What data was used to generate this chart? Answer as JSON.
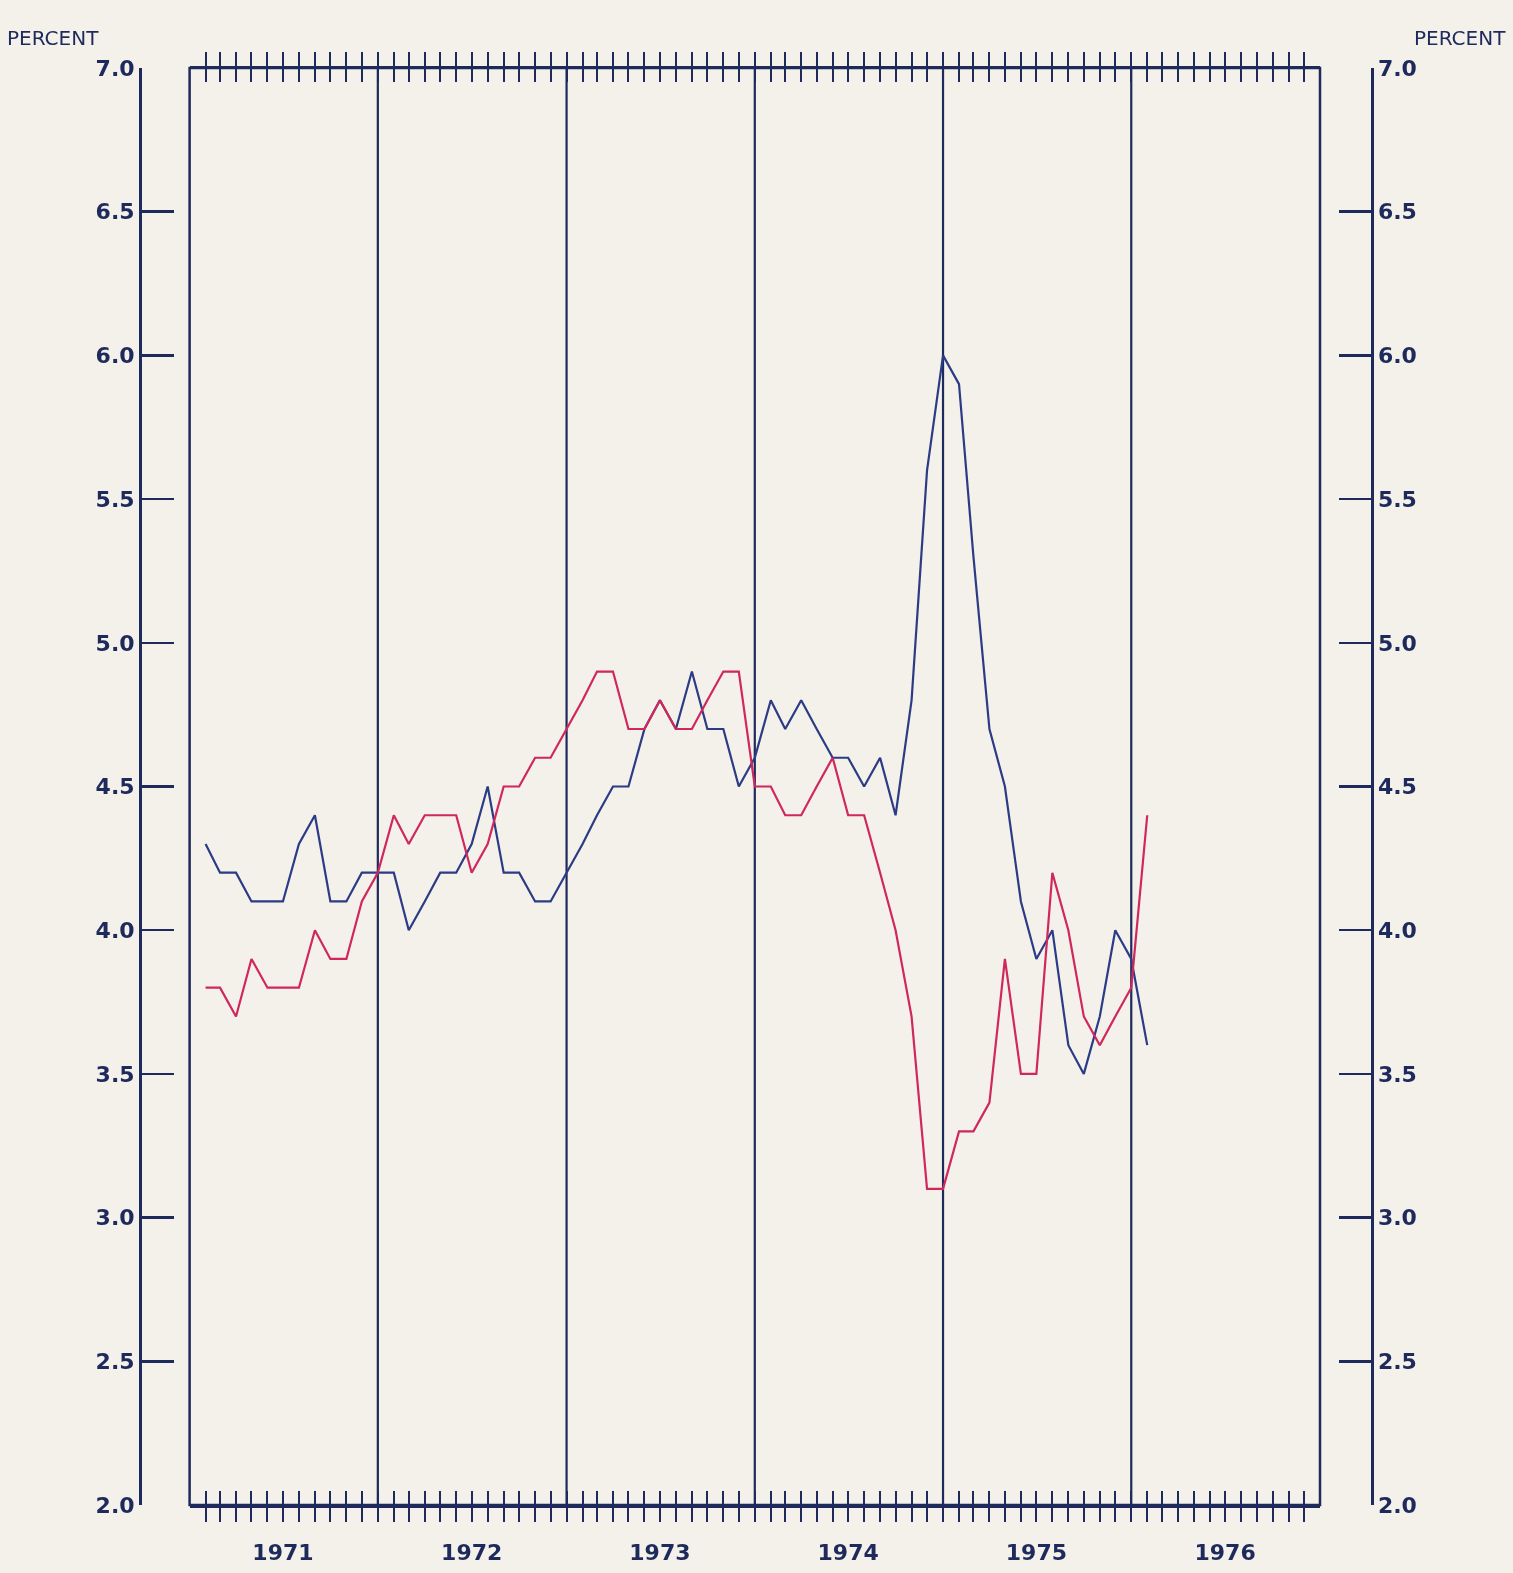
{
  "chart_data": {
    "type": "line",
    "ylabel": "PERCENT",
    "y2label": "PERCENT",
    "x": [
      "1971-02",
      "1971-03",
      "1971-04",
      "1971-05",
      "1971-06",
      "1971-07",
      "1971-08",
      "1971-09",
      "1971-10",
      "1971-11",
      "1971-12",
      "1972-01",
      "1972-02",
      "1972-03",
      "1972-04",
      "1972-05",
      "1972-06",
      "1972-07",
      "1972-08",
      "1972-09",
      "1972-10",
      "1972-11",
      "1972-12",
      "1973-01",
      "1973-02",
      "1973-03",
      "1973-04",
      "1973-05",
      "1973-06",
      "1973-07",
      "1973-08",
      "1973-09",
      "1973-10",
      "1973-11",
      "1973-12",
      "1974-01",
      "1974-02",
      "1974-03",
      "1974-04",
      "1974-05",
      "1974-06",
      "1974-07",
      "1974-08",
      "1974-09",
      "1974-10",
      "1974-11",
      "1974-12",
      "1975-01",
      "1975-02",
      "1975-03",
      "1975-04",
      "1975-05",
      "1975-06",
      "1975-07",
      "1975-08",
      "1975-09",
      "1975-10",
      "1975-11",
      "1975-12",
      "1976-01",
      "1976-02"
    ],
    "series": [
      {
        "color": "#2c3b85",
        "values": [
          4.3,
          4.2,
          4.2,
          4.1,
          4.1,
          4.1,
          4.3,
          4.4,
          4.1,
          4.1,
          4.2,
          4.2,
          4.2,
          4.0,
          4.1,
          4.2,
          4.2,
          4.3,
          4.5,
          4.2,
          4.2,
          4.1,
          4.1,
          4.2,
          4.3,
          4.4,
          4.5,
          4.5,
          4.7,
          4.8,
          4.7,
          4.9,
          4.7,
          4.7,
          4.5,
          4.6,
          4.8,
          4.7,
          4.8,
          4.7,
          4.6,
          4.6,
          4.5,
          4.6,
          4.4,
          4.8,
          5.6,
          6.0,
          5.9,
          5.3,
          4.7,
          4.5,
          4.1,
          3.9,
          4.0,
          3.6,
          3.5,
          3.7,
          4.0,
          3.9,
          3.6
        ]
      },
      {
        "color": "#d0275c",
        "values": [
          3.8,
          3.8,
          3.7,
          3.9,
          3.8,
          3.8,
          3.8,
          4.0,
          3.9,
          3.9,
          4.1,
          4.2,
          4.4,
          4.3,
          4.4,
          4.4,
          4.4,
          4.2,
          4.3,
          4.5,
          4.5,
          4.6,
          4.6,
          4.7,
          4.8,
          4.9,
          4.9,
          4.7,
          4.7,
          4.8,
          4.7,
          4.7,
          4.8,
          4.9,
          4.9,
          4.5,
          4.5,
          4.4,
          4.4,
          4.5,
          4.6,
          4.4,
          4.4,
          4.2,
          4.0,
          3.7,
          3.1,
          3.1,
          3.3,
          3.3,
          3.4,
          3.9,
          3.5,
          3.5,
          4.2,
          4.0,
          3.7,
          3.6,
          3.7,
          3.8,
          4.4
        ]
      }
    ],
    "xlim": [
      "1971-01",
      "1977-01"
    ],
    "xticks": [
      {
        "value": "1971-01",
        "label": null
      },
      {
        "value": "1971-02",
        "label": null
      },
      {
        "value": "1971-03",
        "label": null
      },
      {
        "value": "1971-04",
        "label": null
      },
      {
        "value": "1971-05",
        "label": null
      },
      {
        "value": "1971-06",
        "label": null
      },
      {
        "value": "1971-07",
        "label": "1971"
      },
      {
        "value": "1971-08",
        "label": null
      },
      {
        "value": "1971-09",
        "label": null
      },
      {
        "value": "1971-10",
        "label": null
      },
      {
        "value": "1971-11",
        "label": null
      },
      {
        "value": "1971-12",
        "label": null
      },
      {
        "value": "1972-01",
        "label": null
      },
      {
        "value": "1972-02",
        "label": null
      },
      {
        "value": "1972-03",
        "label": null
      },
      {
        "value": "1972-04",
        "label": null
      },
      {
        "value": "1972-05",
        "label": null
      },
      {
        "value": "1972-06",
        "label": null
      },
      {
        "value": "1972-07",
        "label": "1972"
      },
      {
        "value": "1972-08",
        "label": null
      },
      {
        "value": "1972-09",
        "label": null
      },
      {
        "value": "1972-10",
        "label": null
      },
      {
        "value": "1972-11",
        "label": null
      },
      {
        "value": "1972-12",
        "label": null
      },
      {
        "value": "1973-01",
        "label": null
      },
      {
        "value": "1973-02",
        "label": null
      },
      {
        "value": "1973-03",
        "label": null
      },
      {
        "value": "1973-04",
        "label": null
      },
      {
        "value": "1973-05",
        "label": null
      },
      {
        "value": "1973-06",
        "label": null
      },
      {
        "value": "1973-07",
        "label": "1973"
      },
      {
        "value": "1973-08",
        "label": null
      },
      {
        "value": "1973-09",
        "label": null
      },
      {
        "value": "1973-10",
        "label": null
      },
      {
        "value": "1973-11",
        "label": null
      },
      {
        "value": "1973-12",
        "label": null
      },
      {
        "value": "1974-01",
        "label": null
      },
      {
        "value": "1974-02",
        "label": null
      },
      {
        "value": "1974-03",
        "label": null
      },
      {
        "value": "1974-04",
        "label": null
      },
      {
        "value": "1974-05",
        "label": null
      },
      {
        "value": "1974-06",
        "label": null
      },
      {
        "value": "1974-07",
        "label": "1974"
      },
      {
        "value": "1974-08",
        "label": null
      },
      {
        "value": "1974-09",
        "label": null
      },
      {
        "value": "1974-10",
        "label": null
      },
      {
        "value": "1974-11",
        "label": null
      },
      {
        "value": "1974-12",
        "label": null
      },
      {
        "value": "1975-01",
        "label": null
      },
      {
        "value": "1975-02",
        "label": null
      },
      {
        "value": "1975-03",
        "label": null
      },
      {
        "value": "1975-04",
        "label": null
      },
      {
        "value": "1975-05",
        "label": null
      },
      {
        "value": "1975-06",
        "label": null
      },
      {
        "value": "1975-07",
        "label": "1975"
      },
      {
        "value": "1975-08",
        "label": null
      },
      {
        "value": "1975-09",
        "label": null
      },
      {
        "value": "1975-10",
        "label": null
      },
      {
        "value": "1975-11",
        "label": null
      },
      {
        "value": "1975-12",
        "label": null
      },
      {
        "value": "1976-01",
        "label": null
      },
      {
        "value": "1976-02",
        "label": null
      },
      {
        "value": "1976-03",
        "label": null
      },
      {
        "value": "1976-04",
        "label": null
      },
      {
        "value": "1976-05",
        "label": null
      },
      {
        "value": "1976-06",
        "label": null
      },
      {
        "value": "1976-07",
        "label": "1976"
      },
      {
        "value": "1976-08",
        "label": null
      },
      {
        "value": "1976-09",
        "label": null
      },
      {
        "value": "1976-10",
        "label": null
      },
      {
        "value": "1976-11",
        "label": null
      },
      {
        "value": "1976-12",
        "label": null
      },
      {
        "value": "1977-01",
        "label": null
      }
    ],
    "ylim": [
      2,
      7
    ],
    "yticks": [
      {
        "value": 2,
        "label": "2.0"
      },
      {
        "value": 2.5,
        "label": "2.5"
      },
      {
        "value": 3,
        "label": "3.0"
      },
      {
        "value": 3.5,
        "label": "3.5"
      },
      {
        "value": 4,
        "label": "4.0"
      },
      {
        "value": 4.5,
        "label": "4.5"
      },
      {
        "value": 5,
        "label": "5.0"
      },
      {
        "value": 5.5,
        "label": "5.5"
      },
      {
        "value": 6,
        "label": "6.0"
      },
      {
        "value": 6.5,
        "label": "6.5"
      },
      {
        "value": 7,
        "label": "7.0"
      }
    ],
    "y2lim": [
      2,
      7
    ],
    "y2ticks": [
      {
        "value": 2,
        "label": "2.0"
      },
      {
        "value": 2.5,
        "label": "2.5"
      },
      {
        "value": 3,
        "label": "3.0"
      },
      {
        "value": 3.5,
        "label": "3.5"
      },
      {
        "value": 4,
        "label": "4.0"
      },
      {
        "value": 4.5,
        "label": "4.5"
      },
      {
        "value": 5,
        "label": "5.0"
      },
      {
        "value": 5.5,
        "label": "5.5"
      },
      {
        "value": 6,
        "label": "6.0"
      },
      {
        "value": 6.5,
        "label": "6.5"
      },
      {
        "value": 7,
        "label": "7.0"
      }
    ],
    "ref_lines": [
      {
        "axis": "x",
        "value": "1972-01",
        "color": "#1f2a5c"
      },
      {
        "axis": "x",
        "value": "1973-01",
        "color": "#1f2a5c"
      },
      {
        "axis": "x",
        "value": "1974-01",
        "color": "#1f2a5c"
      },
      {
        "axis": "x",
        "value": "1975-01",
        "color": "#1f2a5c"
      },
      {
        "axis": "x",
        "value": "1976-01",
        "color": "#1f2a5c"
      }
    ]
  }
}
